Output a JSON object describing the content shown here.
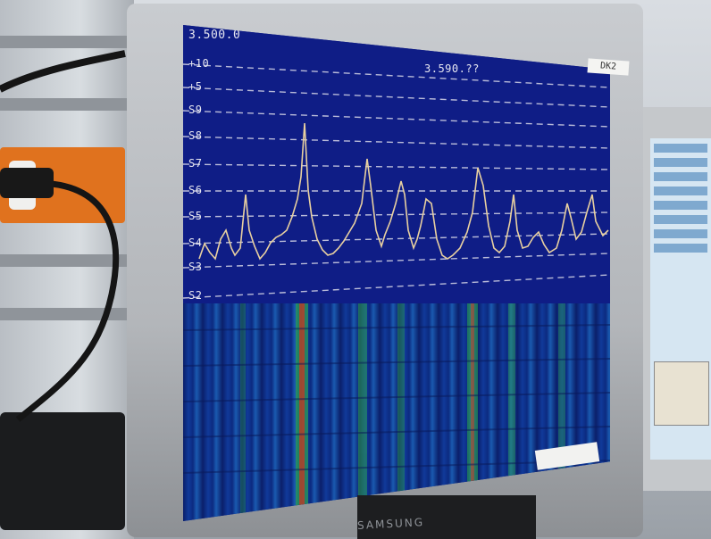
{
  "photo": {
    "screen": {
      "frequency_left": "3.500.0",
      "frequency_center": "3.590.??",
      "scale_labels": [
        "+10",
        "+5",
        "S9",
        "S8",
        "S7",
        "S6",
        "S5",
        "S4",
        "S3",
        "S2"
      ]
    },
    "monitor_brand": "SAMSUNG",
    "monitor_tag": "DK2",
    "colors": {
      "spectrum_bg": "#0f1d86",
      "trace": "#e8d0a0",
      "gridline": "#d8d8e8",
      "waterfall_hot": "#d04020",
      "waterfall_warm": "#2fae4a"
    }
  }
}
